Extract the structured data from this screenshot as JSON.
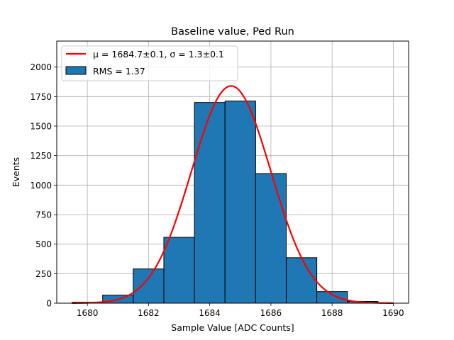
{
  "chart_data": {
    "type": "bar",
    "title": "Baseline value, Ped Run",
    "xlabel": "Sample Value [ADC Counts]",
    "ylabel": "Events",
    "xlim": [
      1679,
      1690.5
    ],
    "ylim": [
      0,
      2220
    ],
    "grid": true,
    "legend_position": "top-left",
    "x_ticks": [
      1680,
      1682,
      1684,
      1686,
      1688,
      1690
    ],
    "y_ticks": [
      0,
      250,
      500,
      750,
      1000,
      1250,
      1500,
      1750,
      2000
    ],
    "bins": [
      {
        "left": 1679.5,
        "right": 1680.5,
        "count": 8
      },
      {
        "left": 1680.5,
        "right": 1681.5,
        "count": 68
      },
      {
        "left": 1681.5,
        "right": 1682.5,
        "count": 290
      },
      {
        "left": 1682.5,
        "right": 1683.5,
        "count": 558
      },
      {
        "left": 1683.5,
        "right": 1684.5,
        "count": 1700
      },
      {
        "left": 1684.5,
        "right": 1685.5,
        "count": 1712
      },
      {
        "left": 1685.5,
        "right": 1686.5,
        "count": 1098
      },
      {
        "left": 1686.5,
        "right": 1687.5,
        "count": 385
      },
      {
        "left": 1687.5,
        "right": 1688.5,
        "count": 98
      },
      {
        "left": 1688.5,
        "right": 1689.5,
        "count": 15
      }
    ],
    "fit": {
      "mu": 1684.7,
      "sigma": 1.3,
      "amplitude": 1840,
      "x_range": [
        1679.5,
        1690
      ]
    },
    "legend": [
      {
        "type": "line",
        "label": "μ = 1684.7±0.1, σ = 1.3±0.1",
        "color": "#ff0000"
      },
      {
        "type": "patch",
        "label": "RMS = 1.37",
        "color": "#1f77b4"
      }
    ],
    "colors": {
      "bars": "#1f77b4",
      "fit": "#ff0000",
      "grid": "#b0b0b0"
    }
  }
}
